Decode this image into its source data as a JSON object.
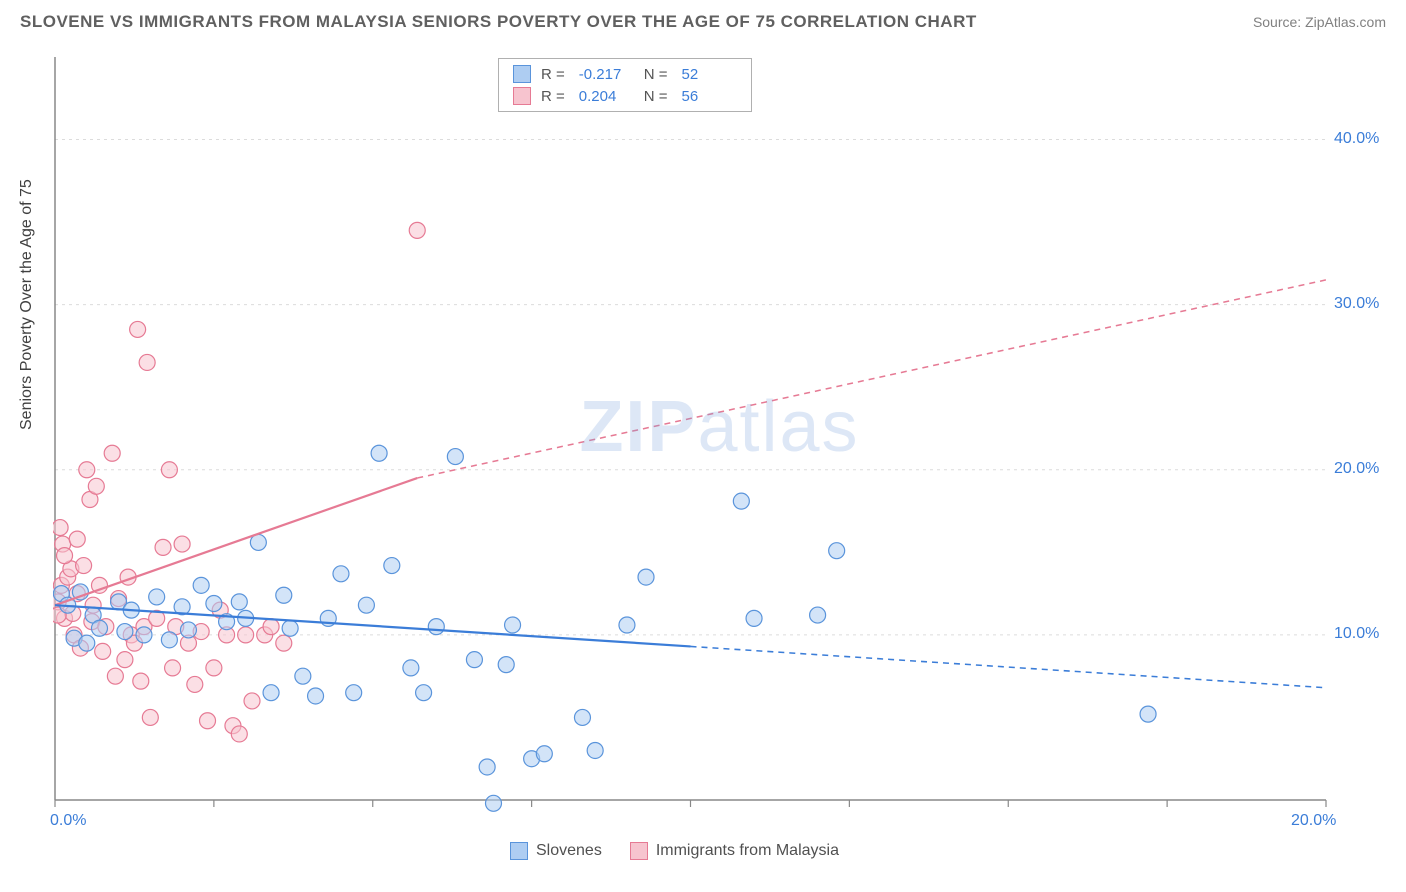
{
  "header": {
    "title": "SLOVENE VS IMMIGRANTS FROM MALAYSIA SENIORS POVERTY OVER THE AGE OF 75 CORRELATION CHART",
    "source": "Source: ZipAtlas.com"
  },
  "watermark": {
    "zip": "ZIP",
    "atlas": "atlas"
  },
  "chart": {
    "type": "scatter",
    "y_axis_title": "Seniors Poverty Over the Age of 75",
    "background_color": "#ffffff",
    "grid_color": "#dcdcdc",
    "axis_line_color": "#888888",
    "xlim": [
      0,
      20
    ],
    "ylim": [
      0,
      45
    ],
    "x_ticks": [
      0,
      2.5,
      5,
      7.5,
      10,
      12.5,
      15,
      17.5,
      20
    ],
    "x_tick_labels": {
      "0": "0.0%",
      "20": "20.0%"
    },
    "y_ticks": [
      10,
      20,
      30,
      40
    ],
    "y_tick_labels": {
      "10": "10.0%",
      "20": "20.0%",
      "30": "30.0%",
      "40": "40.0%"
    },
    "marker_radius": 8,
    "marker_opacity": 0.55,
    "marker_stroke_width": 1.2,
    "trend_line_width": 2.2,
    "trend_dash": "6,5"
  },
  "correlation_legend": {
    "rows": [
      {
        "swatch_fill": "#aecdf2",
        "swatch_stroke": "#5a94db",
        "r_label": "R =",
        "r_value": "-0.217",
        "n_label": "N =",
        "n_value": "52"
      },
      {
        "swatch_fill": "#f7c4cf",
        "swatch_stroke": "#e67a94",
        "r_label": "R =",
        "r_value": "0.204",
        "n_label": "N =",
        "n_value": "56"
      }
    ]
  },
  "series_legend": {
    "items": [
      {
        "swatch_fill": "#aecdf2",
        "swatch_stroke": "#5a94db",
        "label": "Slovenes"
      },
      {
        "swatch_fill": "#f7c4cf",
        "swatch_stroke": "#e67a94",
        "label": "Immigrants from Malaysia"
      }
    ]
  },
  "series": {
    "slovenes": {
      "fill": "#aecdf2",
      "stroke": "#5a94db",
      "trend_color": "#3b7dd8",
      "trend_start": [
        0,
        11.8
      ],
      "trend_solid_end": [
        10,
        9.3
      ],
      "trend_dash_end": [
        20,
        6.8
      ],
      "points": [
        [
          0.1,
          12.5
        ],
        [
          0.2,
          11.8
        ],
        [
          0.3,
          9.8
        ],
        [
          0.4,
          12.6
        ],
        [
          0.5,
          9.5
        ],
        [
          0.6,
          11.2
        ],
        [
          0.7,
          10.4
        ],
        [
          1.0,
          12.0
        ],
        [
          1.1,
          10.2
        ],
        [
          1.2,
          11.5
        ],
        [
          1.4,
          10.0
        ],
        [
          1.6,
          12.3
        ],
        [
          1.8,
          9.7
        ],
        [
          2.0,
          11.7
        ],
        [
          2.1,
          10.3
        ],
        [
          2.3,
          13.0
        ],
        [
          2.5,
          11.9
        ],
        [
          2.7,
          10.8
        ],
        [
          2.9,
          12.0
        ],
        [
          3.0,
          11.0
        ],
        [
          3.2,
          15.6
        ],
        [
          3.4,
          6.5
        ],
        [
          3.6,
          12.4
        ],
        [
          3.7,
          10.4
        ],
        [
          3.9,
          7.5
        ],
        [
          4.1,
          6.3
        ],
        [
          4.3,
          11.0
        ],
        [
          4.5,
          13.7
        ],
        [
          4.7,
          6.5
        ],
        [
          4.9,
          11.8
        ],
        [
          5.1,
          21.0
        ],
        [
          5.3,
          14.2
        ],
        [
          5.6,
          8.0
        ],
        [
          5.8,
          6.5
        ],
        [
          6.0,
          10.5
        ],
        [
          6.3,
          20.8
        ],
        [
          6.6,
          8.5
        ],
        [
          6.8,
          2.0
        ],
        [
          6.9,
          -0.2
        ],
        [
          7.1,
          8.2
        ],
        [
          7.2,
          10.6
        ],
        [
          7.5,
          2.5
        ],
        [
          7.7,
          2.8
        ],
        [
          8.3,
          5.0
        ],
        [
          8.5,
          3.0
        ],
        [
          9.0,
          10.6
        ],
        [
          9.3,
          13.5
        ],
        [
          10.8,
          18.1
        ],
        [
          11.0,
          11.0
        ],
        [
          12.3,
          15.1
        ],
        [
          17.2,
          5.2
        ],
        [
          12.0,
          11.2
        ]
      ]
    },
    "malaysia": {
      "fill": "#f7c4cf",
      "stroke": "#e67a94",
      "trend_color": "#e67a94",
      "trend_start": [
        0,
        11.8
      ],
      "trend_solid_end": [
        5.7,
        19.5
      ],
      "trend_dash_end": [
        20,
        31.5
      ],
      "points": [
        [
          0.05,
          12.0
        ],
        [
          0.08,
          16.5
        ],
        [
          0.1,
          13.0
        ],
        [
          0.12,
          15.5
        ],
        [
          0.15,
          11.0
        ],
        [
          0.2,
          13.5
        ],
        [
          0.25,
          14.0
        ],
        [
          0.28,
          11.3
        ],
        [
          0.3,
          10.0
        ],
        [
          0.35,
          12.5
        ],
        [
          0.4,
          9.2
        ],
        [
          0.45,
          14.2
        ],
        [
          0.5,
          20.0
        ],
        [
          0.55,
          18.2
        ],
        [
          0.58,
          10.8
        ],
        [
          0.6,
          11.8
        ],
        [
          0.7,
          13.0
        ],
        [
          0.75,
          9.0
        ],
        [
          0.8,
          10.5
        ],
        [
          0.9,
          21.0
        ],
        [
          0.95,
          7.5
        ],
        [
          1.0,
          12.2
        ],
        [
          1.1,
          8.5
        ],
        [
          1.15,
          13.5
        ],
        [
          1.2,
          10.0
        ],
        [
          1.3,
          28.5
        ],
        [
          1.35,
          7.2
        ],
        [
          1.4,
          10.5
        ],
        [
          1.45,
          26.5
        ],
        [
          1.5,
          5.0
        ],
        [
          1.6,
          11.0
        ],
        [
          1.7,
          15.3
        ],
        [
          1.8,
          20.0
        ],
        [
          1.85,
          8.0
        ],
        [
          1.9,
          10.5
        ],
        [
          2.0,
          15.5
        ],
        [
          2.1,
          9.5
        ],
        [
          2.2,
          7.0
        ],
        [
          2.3,
          10.2
        ],
        [
          2.4,
          4.8
        ],
        [
          2.5,
          8.0
        ],
        [
          2.6,
          11.5
        ],
        [
          2.7,
          10.0
        ],
        [
          2.8,
          4.5
        ],
        [
          2.9,
          4.0
        ],
        [
          3.0,
          10.0
        ],
        [
          3.1,
          6.0
        ],
        [
          3.3,
          10.0
        ],
        [
          3.4,
          10.5
        ],
        [
          3.6,
          9.5
        ],
        [
          0.05,
          11.2
        ],
        [
          0.15,
          14.8
        ],
        [
          0.35,
          15.8
        ],
        [
          0.65,
          19.0
        ],
        [
          1.25,
          9.5
        ],
        [
          5.7,
          34.5
        ]
      ]
    }
  }
}
